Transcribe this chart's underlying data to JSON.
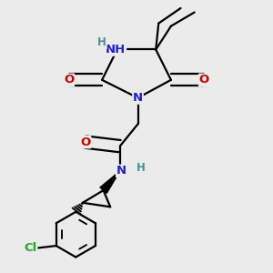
{
  "bg_color": "#ebebeb",
  "atom_colors": {
    "C": "#000000",
    "N": "#2020cc",
    "O": "#cc0000",
    "H": "#4a9090",
    "Cl": "#22aa22"
  },
  "bond_color": "#000000",
  "bond_width": 1.6,
  "font_size_atoms": 9.5,
  "font_size_H": 8.5,
  "xlim": [
    0.05,
    0.85
  ],
  "ylim": [
    0.02,
    1.0
  ]
}
